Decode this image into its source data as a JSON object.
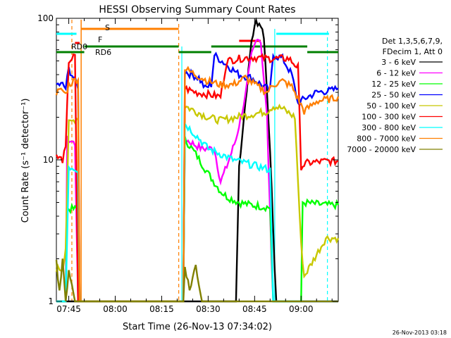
{
  "chart_data": {
    "type": "line",
    "title": "HESSI Observing Summary Count Rates",
    "ylabel": "Count Rate (s⁻¹ detector⁻¹)",
    "xlabel": "Start Time (26-Nov-13 07:34:02)",
    "footer": "26-Nov-2013 03:18",
    "y_scale": "log",
    "ylim": [
      1,
      100
    ],
    "x_range_minutes": [
      7.0,
      98.0
    ],
    "x_ticks": [
      {
        "label": "07:45",
        "minute": 11
      },
      {
        "label": "08:00",
        "minute": 26
      },
      {
        "label": "08:15",
        "minute": 41
      },
      {
        "label": "08:30",
        "minute": 56
      },
      {
        "label": "08:45",
        "minute": 71
      },
      {
        "label": "09:00",
        "minute": 86
      }
    ],
    "y_ticks": [
      {
        "label": "1",
        "value": 1
      },
      {
        "label": "10",
        "value": 10
      },
      {
        "label": "100",
        "value": 100
      }
    ],
    "legend_header": [
      "Det 1,3,5,6,7,9,",
      "FDecim 1, Att 0"
    ],
    "flags": [
      {
        "label": "S",
        "color": "#ff7f00"
      },
      {
        "label": "F",
        "color": "#ff0000"
      },
      {
        "label": "RD0",
        "color": "#008000"
      },
      {
        "label": "RD6",
        "color": "#008000"
      }
    ],
    "series": [
      {
        "name": "3 - 6 keV",
        "color": "#000000",
        "points": [
          [
            7,
            1.0
          ],
          [
            65,
            1.0
          ],
          [
            66,
            9
          ],
          [
            68,
            25
          ],
          [
            70,
            70
          ],
          [
            71.5,
            95
          ],
          [
            73,
            90
          ],
          [
            74,
            75
          ],
          [
            75,
            30
          ],
          [
            76,
            12
          ],
          [
            77,
            3
          ],
          [
            78,
            1.0
          ],
          [
            98,
            1.0
          ]
        ]
      },
      {
        "name": "6 - 12 keV",
        "color": "#ff00ff",
        "points": [
          [
            7,
            1.0
          ],
          [
            10,
            1.0
          ],
          [
            10.5,
            14
          ],
          [
            13,
            13
          ],
          [
            14,
            1.0
          ],
          [
            48,
            1.0
          ],
          [
            48.5,
            14
          ],
          [
            54,
            12
          ],
          [
            58,
            12
          ],
          [
            60,
            7
          ],
          [
            62,
            9
          ],
          [
            65,
            14
          ],
          [
            68,
            28
          ],
          [
            70,
            55
          ],
          [
            72,
            75
          ],
          [
            73,
            68
          ],
          [
            75,
            20
          ],
          [
            76,
            4
          ],
          [
            77,
            1.0
          ],
          [
            98,
            1.0
          ]
        ]
      },
      {
        "name": "12 - 25 keV",
        "color": "#00ff00",
        "points": [
          [
            7,
            1.0
          ],
          [
            10,
            1.0
          ],
          [
            10.5,
            4.5
          ],
          [
            14,
            4.5
          ],
          [
            14.5,
            1.0
          ],
          [
            48,
            1.0
          ],
          [
            48.5,
            14
          ],
          [
            52,
            11
          ],
          [
            56,
            8
          ],
          [
            60,
            6
          ],
          [
            62,
            5.5
          ],
          [
            66,
            5
          ],
          [
            70,
            4.8
          ],
          [
            76,
            4.6
          ],
          [
            77,
            1.0
          ],
          [
            78,
            1.0
          ],
          [
            86,
            1.0
          ],
          [
            86.5,
            5
          ],
          [
            94,
            4.8
          ],
          [
            98,
            4.8
          ]
        ]
      },
      {
        "name": "25 - 50 keV",
        "color": "#0000ff",
        "points": [
          [
            7,
            34
          ],
          [
            9,
            34
          ],
          [
            10,
            32
          ],
          [
            11,
            44
          ],
          [
            14,
            33
          ],
          [
            14.5,
            1.0
          ],
          [
            48,
            1.0
          ],
          [
            48.5,
            42
          ],
          [
            53,
            38
          ],
          [
            55,
            32
          ],
          [
            57,
            34
          ],
          [
            58,
            55
          ],
          [
            63,
            45
          ],
          [
            66,
            40
          ],
          [
            70,
            38
          ],
          [
            74,
            33
          ],
          [
            76,
            31
          ],
          [
            77,
            55
          ],
          [
            80,
            52
          ],
          [
            83,
            40
          ],
          [
            85,
            25
          ],
          [
            87,
            27
          ],
          [
            91,
            30
          ],
          [
            96,
            31
          ],
          [
            98,
            32
          ]
        ]
      },
      {
        "name": "50 - 100 keV",
        "color": "#c8c800",
        "points": [
          [
            7,
            1.7
          ],
          [
            9,
            1.7
          ],
          [
            10,
            2.4
          ],
          [
            11,
            18
          ],
          [
            14,
            20
          ],
          [
            14.5,
            1.0
          ],
          [
            48,
            1.0
          ],
          [
            48.5,
            24
          ],
          [
            52,
            22
          ],
          [
            56,
            20
          ],
          [
            60,
            19
          ],
          [
            65,
            20
          ],
          [
            70,
            21
          ],
          [
            75,
            22
          ],
          [
            77,
            24
          ],
          [
            80,
            23
          ],
          [
            84,
            20
          ],
          [
            86,
            2.5
          ],
          [
            87,
            1.5
          ],
          [
            94,
            2.8
          ],
          [
            98,
            2.8
          ]
        ]
      },
      {
        "name": "100 - 300 keV",
        "color": "#ff0000",
        "points": [
          [
            7,
            10.5
          ],
          [
            9,
            10
          ],
          [
            10,
            12
          ],
          [
            11,
            50
          ],
          [
            13,
            54
          ],
          [
            14,
            1.0
          ],
          [
            48,
            1.0
          ],
          [
            48.5,
            32
          ],
          [
            52,
            30
          ],
          [
            56,
            29
          ],
          [
            60,
            28
          ],
          [
            62,
            50
          ],
          [
            66,
            52
          ],
          [
            70,
            53
          ],
          [
            76,
            52
          ],
          [
            80,
            52
          ],
          [
            82,
            52
          ],
          [
            85,
            45
          ],
          [
            86,
            9
          ],
          [
            88,
            9.5
          ],
          [
            94,
            9.8
          ],
          [
            98,
            9.8
          ]
        ]
      },
      {
        "name": "300 - 800 keV",
        "color": "#00ffff",
        "points": [
          [
            7,
            1.0
          ],
          [
            10,
            1.0
          ],
          [
            11,
            9
          ],
          [
            14,
            8.5
          ],
          [
            14.5,
            1.0
          ],
          [
            48,
            1.0
          ],
          [
            48.5,
            18
          ],
          [
            52,
            15
          ],
          [
            56,
            12
          ],
          [
            60,
            11
          ],
          [
            64,
            10
          ],
          [
            68,
            9.5
          ],
          [
            72,
            9
          ],
          [
            76,
            8.5
          ],
          [
            77,
            1.0
          ],
          [
            98,
            1.0
          ]
        ]
      },
      {
        "name": "800 - 7000 keV",
        "color": "#ff7f00",
        "points": [
          [
            7,
            30
          ],
          [
            9,
            31
          ],
          [
            10,
            29
          ],
          [
            11,
            34
          ],
          [
            14,
            38
          ],
          [
            14.5,
            1.0
          ],
          [
            48,
            1.0
          ],
          [
            48.5,
            44
          ],
          [
            52,
            40
          ],
          [
            56,
            36
          ],
          [
            60,
            34
          ],
          [
            64,
            34
          ],
          [
            68,
            38
          ],
          [
            72,
            33
          ],
          [
            75,
            30
          ],
          [
            77,
            34
          ],
          [
            80,
            36
          ],
          [
            83,
            33
          ],
          [
            85,
            27
          ],
          [
            87,
            22
          ],
          [
            91,
            26
          ],
          [
            96,
            27
          ],
          [
            98,
            28
          ]
        ]
      },
      {
        "name": "7000 - 20000 keV",
        "color": "#808000",
        "points": [
          [
            7,
            1.9
          ],
          [
            8,
            1.2
          ],
          [
            9,
            1.9
          ],
          [
            10,
            1.0
          ],
          [
            11,
            1.7
          ],
          [
            12,
            1.3
          ],
          [
            13,
            1.0
          ],
          [
            48,
            1.0
          ],
          [
            48.5,
            1.8
          ],
          [
            50,
            1.2
          ],
          [
            52,
            1.8
          ],
          [
            54,
            1.0
          ],
          [
            98,
            1.0
          ]
        ]
      }
    ],
    "grid": false,
    "legend_position": "right"
  }
}
